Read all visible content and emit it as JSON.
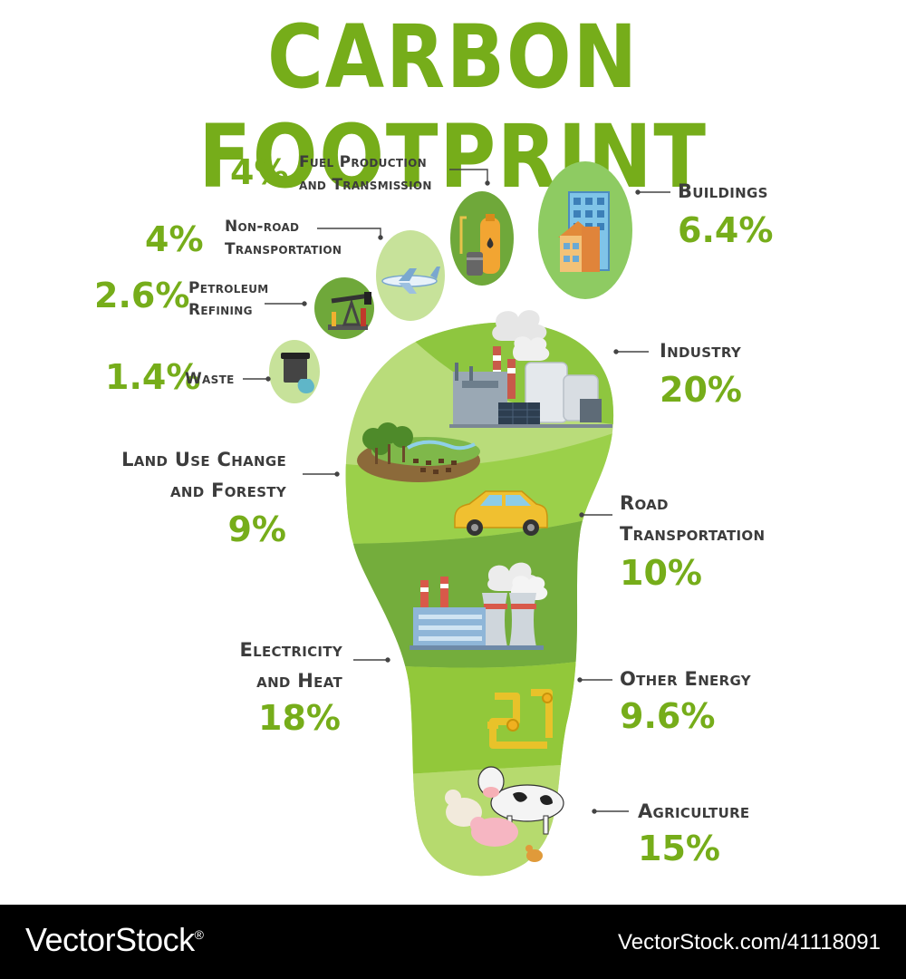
{
  "title": "CARBON FOOTPRINT",
  "sectors": {
    "fuel_production": {
      "label_line1": "Fuel Production",
      "label_line2": "and Transmission",
      "percent": "4%",
      "value": 4
    },
    "non_road": {
      "label_line1": "Non-road",
      "label_line2": "Transportation",
      "percent": "4%",
      "value": 4
    },
    "petroleum": {
      "label_line1": "Petroleum",
      "label_line2": "Refining",
      "percent": "2.6%",
      "value": 2.6
    },
    "waste": {
      "label": "Waste",
      "percent": "1.4%",
      "value": 1.4
    },
    "buildings": {
      "label": "Buildings",
      "percent": "6.4%",
      "value": 6.4
    },
    "industry": {
      "label": "Industry",
      "percent": "20%",
      "value": 20
    },
    "land_use": {
      "label_line1": "Land Use Change",
      "label_line2": "and Foresty",
      "percent": "9%",
      "value": 9
    },
    "road": {
      "label_line1": "Road",
      "label_line2": "Transportation",
      "percent": "10%",
      "value": 10
    },
    "electricity": {
      "label_line1": "Electricity",
      "label_line2": "and Heat",
      "percent": "18%",
      "value": 18
    },
    "other_energy": {
      "label": "Other Energy",
      "percent": "9.6%",
      "value": 9.6
    },
    "agriculture": {
      "label": "Agriculture",
      "percent": "15%",
      "value": 15
    }
  },
  "footer": {
    "brand": "VectorStock",
    "brand_mark": "®",
    "url": "VectorStock.com/41118091"
  },
  "colors": {
    "title_green": "#76ad1a",
    "label_gray": "#3c3c3c",
    "foot_light": "#b9dc7a",
    "foot_mid": "#8ec63f",
    "foot_dark": "#6fa83a"
  }
}
